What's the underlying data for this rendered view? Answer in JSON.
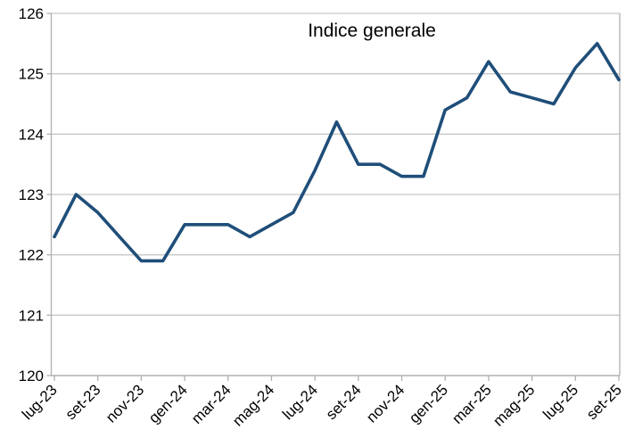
{
  "chart_data": {
    "type": "line",
    "title": "Indice generale",
    "x": [
      "lug-23",
      "ago-23",
      "set-23",
      "ott-23",
      "nov-23",
      "dic-23",
      "gen-24",
      "feb-24",
      "mar-24",
      "apr-24",
      "mag-24",
      "giu-24",
      "lug-24",
      "ago-24",
      "set-24",
      "ott-24",
      "nov-24",
      "dic-24",
      "gen-25",
      "feb-25",
      "mar-25",
      "apr-25",
      "mag-25",
      "giu-25",
      "lug-25",
      "ago-25",
      "set-25"
    ],
    "values": [
      122.3,
      123.0,
      122.7,
      122.3,
      121.9,
      121.9,
      122.5,
      122.5,
      122.5,
      122.3,
      122.5,
      122.7,
      123.4,
      124.2,
      123.5,
      123.5,
      123.3,
      123.3,
      124.4,
      124.6,
      125.2,
      124.7,
      124.6,
      124.5,
      125.1,
      125.5,
      124.9
    ],
    "xtick_label_every": 2,
    "xtick_labels_shown": [
      "lug-23",
      "set-23",
      "nov-23",
      "gen-24",
      "mar-24",
      "mag-24",
      "lug-24",
      "set-24",
      "nov-24",
      "gen-25",
      "mar-25",
      "mag-25",
      "lug-25",
      "set-25"
    ],
    "ylim": [
      120,
      126
    ],
    "ytick_step": 1,
    "ytick_labels": [
      "120",
      "121",
      "122",
      "123",
      "124",
      "125",
      "126"
    ],
    "xlabel": "",
    "ylabel": "",
    "grid": "horizontal",
    "legend": "none",
    "colors": {
      "series": "#1F4E79",
      "grid": "#c8c8c8",
      "axis": "#b0b0b0",
      "text": "#000000",
      "background": "#ffffff"
    }
  }
}
